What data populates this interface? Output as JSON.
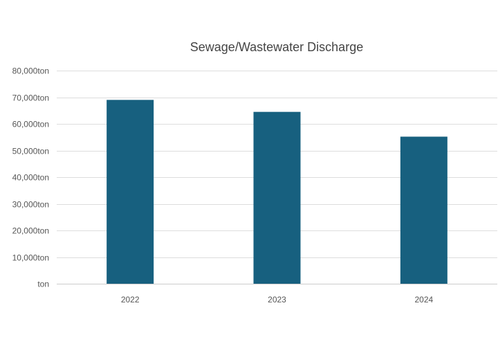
{
  "chart_data": {
    "type": "bar",
    "title": "Sewage/Wastewater Discharge",
    "categories": [
      "2022",
      "2023",
      "2024"
    ],
    "values": [
      69000,
      64500,
      55200
    ],
    "ylim": [
      0,
      80000
    ],
    "y_ticks": [
      0,
      10000,
      20000,
      30000,
      40000,
      50000,
      60000,
      70000,
      80000
    ],
    "y_tick_labels": [
      "ton",
      "10,000ton",
      "20,000ton",
      "30,000ton",
      "40,000ton",
      "50,000ton",
      "60,000ton",
      "70,000ton",
      "80,000ton"
    ],
    "xlabel": "",
    "ylabel": "",
    "grid": true,
    "bar_color": "#17607f"
  }
}
